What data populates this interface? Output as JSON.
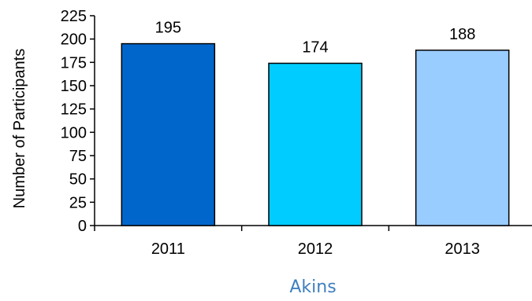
{
  "chart_data": {
    "type": "bar",
    "categories": [
      "2011",
      "2012",
      "2013"
    ],
    "values": [
      195,
      174,
      188
    ],
    "data_labels": [
      "195",
      "174",
      "188"
    ],
    "colors": [
      "#0066cc",
      "#00ccff",
      "#99ccff"
    ],
    "bar_border": "#000000",
    "xlabel": "Akins",
    "ylabel": "Number of Participants",
    "ylim": [
      0,
      225
    ],
    "yticks": [
      0,
      25,
      50,
      75,
      100,
      125,
      150,
      175,
      200,
      225
    ],
    "grid": false,
    "legend": "none"
  }
}
